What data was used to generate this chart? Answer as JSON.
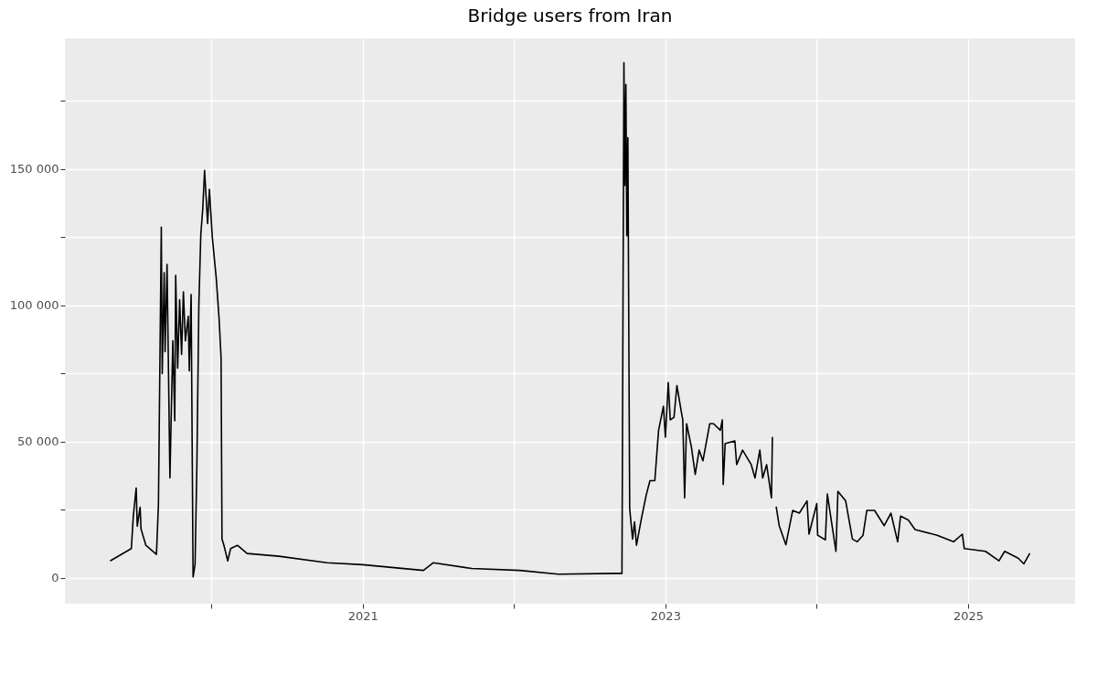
{
  "chart_data": {
    "type": "line",
    "title": "Bridge users from Iran",
    "x": [
      2019.331,
      2019.471,
      2019.484,
      2019.503,
      2019.51,
      2019.529,
      2019.535,
      2019.567,
      2019.637,
      2019.65,
      2019.669,
      2019.675,
      2019.688,
      2019.694,
      2019.707,
      2019.726,
      2019.745,
      2019.758,
      2019.764,
      2019.777,
      2019.79,
      2019.803,
      2019.815,
      2019.828,
      2019.847,
      2019.854,
      2019.866,
      2019.879,
      2019.892,
      2019.904,
      2019.917,
      2019.93,
      2019.943,
      2019.955,
      2019.975,
      2019.987,
      2020.006,
      2020.032,
      2020.051,
      2020.064,
      2020.07,
      2020.083,
      2020.108,
      2020.127,
      2020.172,
      2020.236,
      2020.446,
      2020.764,
      2021.0,
      2021.401,
      2021.465,
      2021.72,
      2022.038,
      2022.293,
      2022.675,
      2022.713,
      2022.726,
      2022.732,
      2022.739,
      2022.745,
      2022.752,
      2022.764,
      2022.783,
      2022.796,
      2022.809,
      2022.841,
      2022.873,
      2022.898,
      2022.93,
      2022.955,
      2022.987,
      2023.0,
      2023.019,
      2023.032,
      2023.057,
      2023.076,
      2023.102,
      2023.115,
      2023.127,
      2023.14,
      2023.172,
      2023.197,
      2023.223,
      2023.248,
      2023.293,
      2023.318,
      2023.363,
      2023.376,
      2023.382,
      2023.395,
      2023.459,
      2023.471,
      2023.51,
      2023.567,
      2023.592,
      2023.624,
      2023.643,
      2023.669,
      2023.701,
      2023.707,
      2023.72,
      2023.732,
      2023.752,
      2023.796,
      2023.841,
      2023.885,
      2023.936,
      2023.949,
      2024.0,
      2024.006,
      2024.057,
      2024.07,
      2024.127,
      2024.14,
      2024.191,
      2024.236,
      2024.268,
      2024.306,
      2024.331,
      2024.382,
      2024.446,
      2024.49,
      2024.535,
      2024.554,
      2024.605,
      2024.65,
      2024.796,
      2024.904,
      2024.962,
      2024.975,
      2025.115,
      2025.204,
      2025.242,
      2025.331,
      2025.369,
      2025.408
    ],
    "series": [
      {
        "color": "#000000",
        "values": [
          6300,
          10800,
          22700,
          33000,
          19000,
          26000,
          18000,
          12000,
          8700,
          27000,
          128700,
          75000,
          112000,
          83000,
          115000,
          36700,
          87000,
          57700,
          111000,
          77000,
          102000,
          82000,
          105000,
          87000,
          96000,
          76000,
          104000,
          400,
          5000,
          41000,
          100000,
          126000,
          135500,
          149500,
          130000,
          142500,
          125000,
          110000,
          95000,
          80800,
          14300,
          12000,
          6300,
          10800,
          12000,
          9000,
          8000,
          5600,
          4900,
          2800,
          5600,
          3500,
          2800,
          1400,
          1700,
          1700,
          189000,
          144000,
          181000,
          125500,
          161500,
          25500,
          14300,
          20600,
          12000,
          21700,
          30400,
          35700,
          35700,
          54200,
          63000,
          51700,
          71700,
          58000,
          59000,
          70600,
          62000,
          58000,
          29400,
          56600,
          48000,
          38000,
          46900,
          43000,
          56600,
          56600,
          54200,
          58000,
          34300,
          49300,
          50300,
          41600,
          46900,
          41600,
          36700,
          46900,
          36700,
          41600,
          29400,
          51700,
          null,
          26200,
          19200,
          12200,
          24800,
          23800,
          28300,
          16100,
          27300,
          15700,
          14000,
          30800,
          9800,
          31800,
          28300,
          14300,
          13300,
          15700,
          24800,
          24800,
          19200,
          23800,
          13300,
          22700,
          21300,
          17800,
          15700,
          13300,
          16100,
          10800,
          9800,
          6300,
          9800,
          7300,
          5200,
          9100
        ]
      }
    ],
    "xlim": [
      2019.032,
      2025.707
    ],
    "xticks": [
      {
        "value": 2020,
        "label": null
      },
      2021,
      {
        "value": 2022,
        "label": null
      },
      2023,
      {
        "value": 2024,
        "label": null
      },
      2025
    ],
    "ylim": [
      -9400,
      197900
    ],
    "yticks": [
      {
        "value": 0,
        "label": "0"
      },
      {
        "value": 25000,
        "label": null
      },
      {
        "value": 50000,
        "label": "50 000"
      },
      {
        "value": 75000,
        "label": null
      },
      {
        "value": 100000,
        "label": "100 000"
      },
      {
        "value": 125000,
        "label": null
      },
      {
        "value": 150000,
        "label": "150 000"
      },
      {
        "value": 175000,
        "label": null
      }
    ],
    "grid": true,
    "marker": "none",
    "line_style": "solid"
  }
}
